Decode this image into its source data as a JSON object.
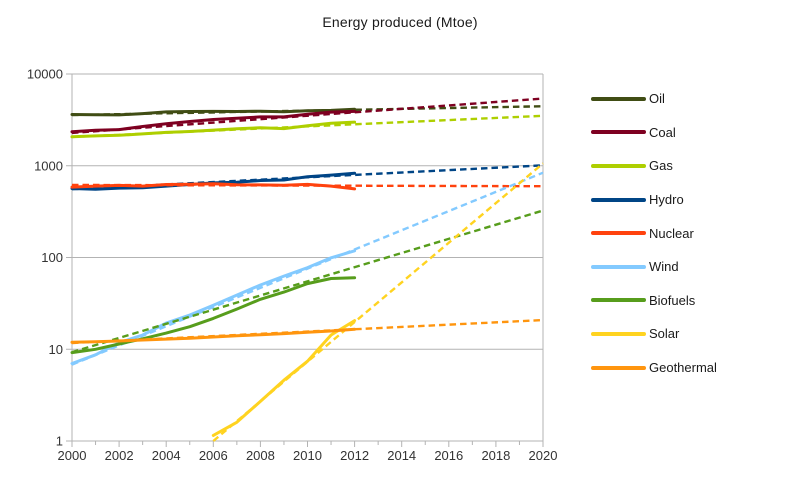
{
  "page": {
    "background": "#ffffff"
  },
  "title": "Energy produced (Mtoe)",
  "chart_data": {
    "type": "line",
    "title": "Energy produced (Mtoe)",
    "legend_position": "right",
    "grid": "horizontal major gridlines, light gray",
    "x_axis": {
      "min": 2000,
      "max": 2020,
      "major_tick_labels": [
        "2000",
        "2002",
        "2004",
        "2006",
        "2008",
        "2010",
        "2012",
        "2014",
        "2016",
        "2018",
        "2020"
      ],
      "minor_tick_step": 1
    },
    "y_axis": {
      "scale": "log",
      "min": 1,
      "max": 10000,
      "tick_labels": [
        "10000",
        "1000",
        "100",
        "10",
        "1"
      ]
    },
    "solid_segment": "measured data 2000-2012",
    "dashed_segment": "exponential trend lines extended to 2020",
    "series": [
      {
        "name": "Oil",
        "color": "#404d14",
        "start_year": 2000,
        "values": [
          3620,
          3600,
          3580,
          3700,
          3860,
          3900,
          3915,
          3905,
          3930,
          3885,
          3980,
          4010,
          4120
        ],
        "trend": {
          "years": [
            2000,
            2020
          ],
          "values": [
            3570,
            4450
          ]
        }
      },
      {
        "name": "Coal",
        "color": "#7e0021",
        "start_year": 2000,
        "values": [
          2343,
          2435,
          2475,
          2680,
          2875,
          3035,
          3190,
          3300,
          3410,
          3410,
          3635,
          3845,
          3910
        ],
        "trend": {
          "years": [
            2000,
            2020
          ],
          "values": [
            2280,
            5400
          ]
        }
      },
      {
        "name": "Gas",
        "color": "#aecf00",
        "start_year": 2000,
        "values": [
          2070,
          2115,
          2145,
          2225,
          2310,
          2365,
          2445,
          2525,
          2600,
          2540,
          2735,
          2905,
          2990
        ],
        "trend": {
          "years": [
            2000,
            2020
          ],
          "values": [
            2060,
            3500
          ]
        }
      },
      {
        "name": "Hydro",
        "color": "#004586",
        "start_year": 2000,
        "values": [
          565,
          555,
          570,
          575,
          600,
          625,
          650,
          660,
          690,
          700,
          760,
          790,
          830
        ],
        "trend": {
          "years": [
            2000,
            2020
          ],
          "values": [
            555,
            1010
          ]
        }
      },
      {
        "name": "Nuclear",
        "color": "#ff420e",
        "start_year": 2000,
        "values": [
          585,
          600,
          610,
          600,
          625,
          628,
          635,
          622,
          619,
          614,
          626,
          600,
          560
        ],
        "trend": {
          "years": [
            2000,
            2020
          ],
          "values": [
            618,
            598
          ]
        }
      },
      {
        "name": "Wind",
        "color": "#83caff",
        "start_year": 2000,
        "values": [
          7.0,
          8.7,
          11.8,
          14.3,
          19.3,
          23.6,
          30.2,
          38.9,
          50.2,
          62.7,
          77.7,
          99.3,
          118.4
        ],
        "trend": {
          "years": [
            2000,
            2020
          ],
          "values": [
            6.8,
            840
          ]
        }
      },
      {
        "name": "Biofuels",
        "color": "#579d1c",
        "start_year": 2000,
        "values": [
          9.2,
          10.0,
          11.4,
          13.0,
          15.0,
          17.6,
          21.7,
          27.4,
          35.0,
          42.0,
          52.0,
          59.0,
          60.2
        ],
        "trend": {
          "years": [
            2000,
            2020
          ],
          "values": [
            9.3,
            325
          ]
        }
      },
      {
        "name": "Solar",
        "color": "#ffd320",
        "start_year": 2006,
        "values": [
          1.15,
          1.6,
          2.7,
          4.6,
          7.4,
          14.3,
          20.5
        ],
        "trend": {
          "years": [
            2006,
            2020
          ],
          "values": [
            1.0,
            1060
          ]
        }
      },
      {
        "name": "Geothermal",
        "color": "#ff950e",
        "start_year": 2000,
        "values": [
          11.9,
          12.1,
          12.3,
          12.6,
          12.9,
          13.2,
          13.6,
          14.0,
          14.4,
          14.8,
          15.3,
          15.8,
          16.5
        ],
        "trend": {
          "years": [
            2000,
            2020
          ],
          "values": [
            11.7,
            20.8
          ]
        }
      }
    ],
    "style": {
      "grid_color": "#b3b3b3",
      "axis_color": "#b3b3b3",
      "label_color": "#333333",
      "solid_width": 3,
      "dash_width": 2.4,
      "dash_pattern": "6.5 4"
    }
  }
}
